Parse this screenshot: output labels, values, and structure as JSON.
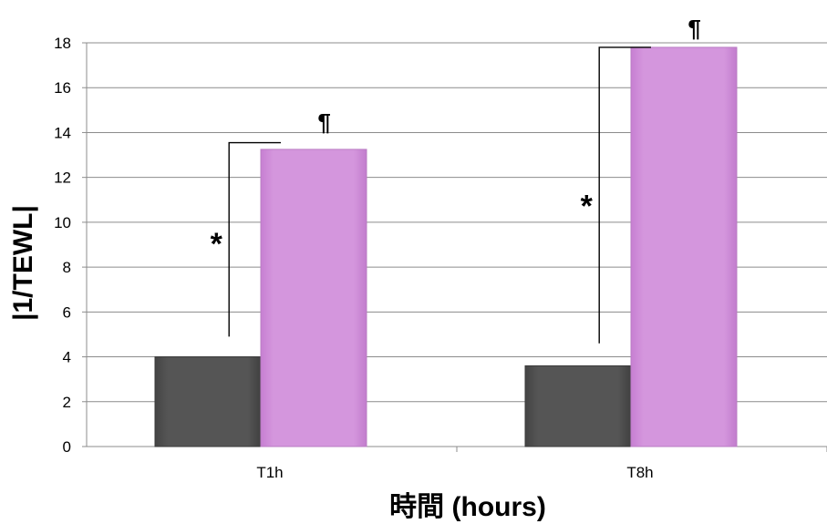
{
  "chart_data": {
    "type": "bar",
    "categories": [
      "T1h",
      "T8h"
    ],
    "series": [
      {
        "values": [
          4.0,
          3.6
        ],
        "color": "#555555"
      },
      {
        "values": [
          13.25,
          17.8
        ],
        "color": "#d496dd"
      }
    ],
    "xlabel": "時間 (hours)",
    "ylabel": "|1/TEWL|",
    "ylim": [
      0,
      18
    ],
    "yticks": [
      "0",
      "2",
      "4",
      "6",
      "8",
      "10",
      "12",
      "14",
      "16",
      "18"
    ],
    "grid": true,
    "legend": "none",
    "annotations": [
      {
        "category": "T1h",
        "bracket_from": 4.9,
        "bracket_to": 13.55,
        "star": "*",
        "pilcrow": "¶",
        "star_at": 9.3,
        "pilcrow_at": 14.5
      },
      {
        "category": "T8h",
        "bracket_from": 4.6,
        "bracket_to": 17.8,
        "star": "*",
        "pilcrow": "¶",
        "star_at": 11.0,
        "pilcrow_at": 18.7
      }
    ]
  }
}
